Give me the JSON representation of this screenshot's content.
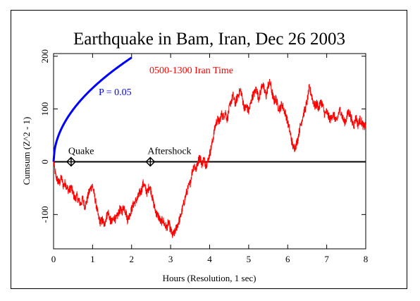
{
  "chart_data": {
    "type": "line",
    "title": "Earthquake in Bam, Iran, Dec 26 2003",
    "xlabel": "Hours (Resolution, 1 sec)",
    "ylabel": "Cumsum (Z^2 - 1)",
    "xlim": [
      0,
      8
    ],
    "ylim": [
      -165,
      205
    ],
    "xticks": [
      0,
      1,
      2,
      3,
      4,
      5,
      6,
      7,
      8
    ],
    "yticks": [
      -100,
      0,
      100,
      200
    ],
    "series": [
      {
        "name": "0500-1300 Iran Time",
        "color": "#ff0000",
        "points": [
          [
            0.0,
            0
          ],
          [
            0.05,
            -25
          ],
          [
            0.1,
            -35
          ],
          [
            0.15,
            -40
          ],
          [
            0.2,
            -30
          ],
          [
            0.25,
            -45
          ],
          [
            0.3,
            -40
          ],
          [
            0.35,
            -50
          ],
          [
            0.4,
            -55
          ],
          [
            0.45,
            -48
          ],
          [
            0.5,
            -60
          ],
          [
            0.55,
            -70
          ],
          [
            0.6,
            -65
          ],
          [
            0.65,
            -75
          ],
          [
            0.7,
            -80
          ],
          [
            0.75,
            -70
          ],
          [
            0.8,
            -85
          ],
          [
            0.85,
            -75
          ],
          [
            0.9,
            -60
          ],
          [
            0.95,
            -50
          ],
          [
            1.0,
            -45
          ],
          [
            1.05,
            -65
          ],
          [
            1.1,
            -85
          ],
          [
            1.15,
            -105
          ],
          [
            1.2,
            -115
          ],
          [
            1.25,
            -110
          ],
          [
            1.3,
            -120
          ],
          [
            1.35,
            -105
          ],
          [
            1.4,
            -95
          ],
          [
            1.45,
            -110
          ],
          [
            1.5,
            -115
          ],
          [
            1.55,
            -105
          ],
          [
            1.6,
            -110
          ],
          [
            1.65,
            -100
          ],
          [
            1.7,
            -90
          ],
          [
            1.75,
            -95
          ],
          [
            1.8,
            -85
          ],
          [
            1.85,
            -95
          ],
          [
            1.9,
            -110
          ],
          [
            1.95,
            -100
          ],
          [
            2.0,
            -90
          ],
          [
            2.05,
            -80
          ],
          [
            2.1,
            -75
          ],
          [
            2.15,
            -70
          ],
          [
            2.2,
            -60
          ],
          [
            2.25,
            -55
          ],
          [
            2.3,
            -40
          ],
          [
            2.35,
            -50
          ],
          [
            2.4,
            -60
          ],
          [
            2.45,
            -45
          ],
          [
            2.5,
            -55
          ],
          [
            2.55,
            -75
          ],
          [
            2.6,
            -90
          ],
          [
            2.65,
            -100
          ],
          [
            2.7,
            -105
          ],
          [
            2.75,
            -115
          ],
          [
            2.8,
            -110
          ],
          [
            2.85,
            -120
          ],
          [
            2.9,
            -125
          ],
          [
            2.95,
            -115
          ],
          [
            3.0,
            -130
          ],
          [
            3.05,
            -140
          ],
          [
            3.1,
            -135
          ],
          [
            3.15,
            -125
          ],
          [
            3.2,
            -115
          ],
          [
            3.25,
            -105
          ],
          [
            3.3,
            -90
          ],
          [
            3.35,
            -75
          ],
          [
            3.4,
            -60
          ],
          [
            3.45,
            -50
          ],
          [
            3.5,
            -40
          ],
          [
            3.55,
            -20
          ],
          [
            3.6,
            -5
          ],
          [
            3.65,
            -15
          ],
          [
            3.7,
            0
          ],
          [
            3.75,
            10
          ],
          [
            3.8,
            -5
          ],
          [
            3.85,
            5
          ],
          [
            3.9,
            -5
          ],
          [
            3.95,
            0
          ],
          [
            4.0,
            15
          ],
          [
            4.05,
            30
          ],
          [
            4.1,
            50
          ],
          [
            4.15,
            70
          ],
          [
            4.2,
            80
          ],
          [
            4.25,
            75
          ],
          [
            4.3,
            90
          ],
          [
            4.35,
            85
          ],
          [
            4.4,
            95
          ],
          [
            4.45,
            80
          ],
          [
            4.5,
            100
          ],
          [
            4.55,
            115
          ],
          [
            4.6,
            125
          ],
          [
            4.65,
            110
          ],
          [
            4.7,
            120
          ],
          [
            4.75,
            130
          ],
          [
            4.8,
            135
          ],
          [
            4.85,
            115
          ],
          [
            4.9,
            100
          ],
          [
            4.95,
            105
          ],
          [
            5.0,
            95
          ],
          [
            5.05,
            110
          ],
          [
            5.1,
            125
          ],
          [
            5.15,
            130
          ],
          [
            5.2,
            140
          ],
          [
            5.25,
            120
          ],
          [
            5.3,
            130
          ],
          [
            5.35,
            150
          ],
          [
            5.4,
            135
          ],
          [
            5.45,
            125
          ],
          [
            5.5,
            145
          ],
          [
            5.55,
            150
          ],
          [
            5.6,
            130
          ],
          [
            5.65,
            115
          ],
          [
            5.7,
            120
          ],
          [
            5.75,
            105
          ],
          [
            5.8,
            100
          ],
          [
            5.85,
            110
          ],
          [
            5.9,
            100
          ],
          [
            5.95,
            90
          ],
          [
            6.0,
            75
          ],
          [
            6.05,
            60
          ],
          [
            6.1,
            40
          ],
          [
            6.15,
            25
          ],
          [
            6.2,
            30
          ],
          [
            6.25,
            40
          ],
          [
            6.3,
            60
          ],
          [
            6.35,
            75
          ],
          [
            6.4,
            90
          ],
          [
            6.45,
            100
          ],
          [
            6.5,
            115
          ],
          [
            6.55,
            140
          ],
          [
            6.6,
            130
          ],
          [
            6.65,
            115
          ],
          [
            6.7,
            105
          ],
          [
            6.75,
            110
          ],
          [
            6.8,
            100
          ],
          [
            6.85,
            115
          ],
          [
            6.9,
            105
          ],
          [
            6.95,
            90
          ],
          [
            7.0,
            95
          ],
          [
            7.05,
            85
          ],
          [
            7.1,
            80
          ],
          [
            7.15,
            90
          ],
          [
            7.2,
            85
          ],
          [
            7.25,
            75
          ],
          [
            7.3,
            90
          ],
          [
            7.35,
            100
          ],
          [
            7.4,
            85
          ],
          [
            7.45,
            75
          ],
          [
            7.5,
            80
          ],
          [
            7.55,
            95
          ],
          [
            7.6,
            90
          ],
          [
            7.65,
            75
          ],
          [
            7.7,
            70
          ],
          [
            7.75,
            85
          ],
          [
            7.8,
            70
          ],
          [
            7.85,
            80
          ],
          [
            7.9,
            75
          ],
          [
            7.95,
            65
          ],
          [
            8.0,
            70
          ]
        ]
      }
    ],
    "probability_curve": {
      "label": "P = 0.05",
      "color": "#0000ff",
      "formula": "1.645 * sqrt(2 * seconds)",
      "x_end": 2.0
    },
    "events": [
      {
        "label": "Quake",
        "x": 0.45,
        "y": 0
      },
      {
        "label": "Aftershock",
        "x": 2.48,
        "y": 0
      }
    ],
    "zero_line": true,
    "grid": false
  }
}
